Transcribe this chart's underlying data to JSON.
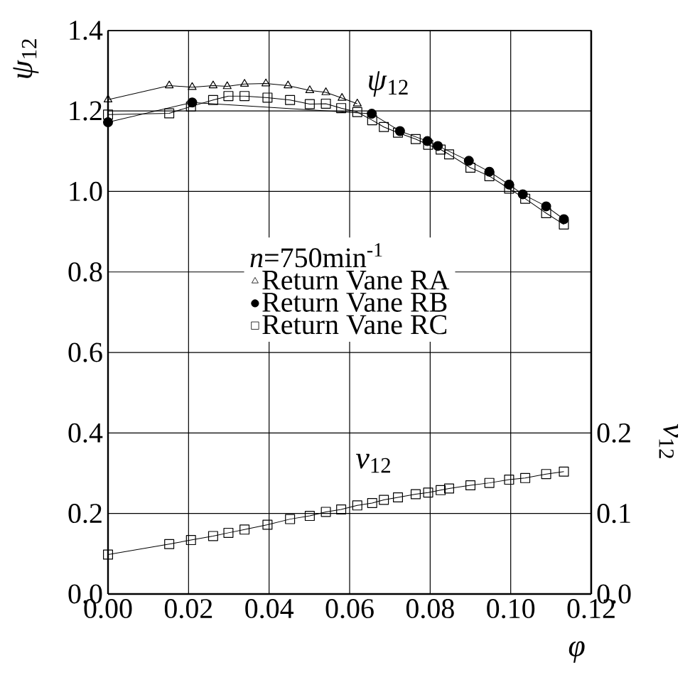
{
  "chart_data": {
    "type": "line",
    "xlabel": "φ",
    "ylabel": "*ψ*$_{12}$",
    "y2label": "*ν*$_{12}$",
    "legend_title": "*n*=750min$^{-1}$",
    "xlim": [
      0,
      0.12
    ],
    "ylim": [
      0,
      1.4
    ],
    "y2lim": [
      0,
      0.7
    ],
    "xticks": [
      {
        "value": 0,
        "label": "0.00"
      },
      0.02,
      0.04,
      0.06,
      0.08,
      {
        "value": 0.1,
        "label": "0.10"
      },
      0.12
    ],
    "yticks": [
      {
        "value": 0,
        "label": "0.0"
      },
      0.2,
      0.4,
      0.6,
      0.8,
      {
        "value": 1,
        "label": "1.0"
      },
      1.2,
      1.4
    ],
    "y2ticks": [
      {
        "value": 0,
        "label": "0.0"
      },
      0.1,
      0.2
    ],
    "grid": true,
    "legend": "center",
    "line_style": "solid",
    "annotations": [
      "*ψ*$_{12}$",
      "*ν*$_{12}$"
    ],
    "series": [
      {
        "name": "Return Vane RA",
        "color": "#000000",
        "marker": "triangle",
        "x": [
          0,
          0.0152,
          0.0209,
          0.0261,
          0.0296,
          0.0339,
          0.0392,
          0.0447,
          0.0501,
          0.0541,
          0.0581,
          0.0619
        ],
        "values": [
          1.228,
          1.263,
          1.259,
          1.263,
          1.261,
          1.267,
          1.268,
          1.263,
          1.251,
          1.246,
          1.232,
          1.218
        ]
      },
      {
        "name": "Return Vane RB",
        "color": "#000000",
        "marker": "circle",
        "x": [
          0,
          0.0209,
          0.0655,
          0.0725,
          0.0793,
          0.0819,
          0.0896,
          0.0947,
          0.0996,
          0.103,
          0.1088,
          0.1132
        ],
        "values": [
          1.172,
          1.221,
          1.193,
          1.15,
          1.125,
          1.113,
          1.076,
          1.049,
          1.017,
          0.993,
          0.963,
          0.931
        ]
      },
      {
        "name": "Return Vane RC",
        "color": "#000000",
        "marker": "square",
        "x": [
          0,
          0.0152,
          0.0206,
          0.0261,
          0.0299,
          0.0339,
          0.0396,
          0.0452,
          0.0501,
          0.0541,
          0.0579,
          0.0619,
          0.0656,
          0.0685,
          0.072,
          0.0764,
          0.0795,
          0.0826,
          0.0847,
          0.09,
          0.0947,
          0.0996,
          0.1036,
          0.1088,
          0.1132
        ],
        "values": [
          1.191,
          1.194,
          1.211,
          1.227,
          1.237,
          1.237,
          1.233,
          1.227,
          1.217,
          1.218,
          1.207,
          1.197,
          1.177,
          1.16,
          1.146,
          1.13,
          1.116,
          1.104,
          1.092,
          1.059,
          1.038,
          1.007,
          0.982,
          0.946,
          0.918
        ]
      },
      {
        "color": "#000000",
        "marker": "square",
        "axis": "y2",
        "x": [
          0,
          0.0152,
          0.0206,
          0.0261,
          0.0299,
          0.0339,
          0.0396,
          0.0452,
          0.0501,
          0.0541,
          0.0579,
          0.0619,
          0.0656,
          0.0685,
          0.072,
          0.0764,
          0.0795,
          0.0826,
          0.0847,
          0.09,
          0.0947,
          0.0996,
          0.1036,
          0.1088,
          0.1132
        ],
        "values": [
          0.049,
          0.062,
          0.067,
          0.072,
          0.076,
          0.08,
          0.086,
          0.093,
          0.097,
          0.102,
          0.105,
          0.11,
          0.113,
          0.117,
          0.12,
          0.124,
          0.126,
          0.129,
          0.131,
          0.135,
          0.138,
          0.142,
          0.144,
          0.149,
          0.152
        ]
      }
    ]
  }
}
